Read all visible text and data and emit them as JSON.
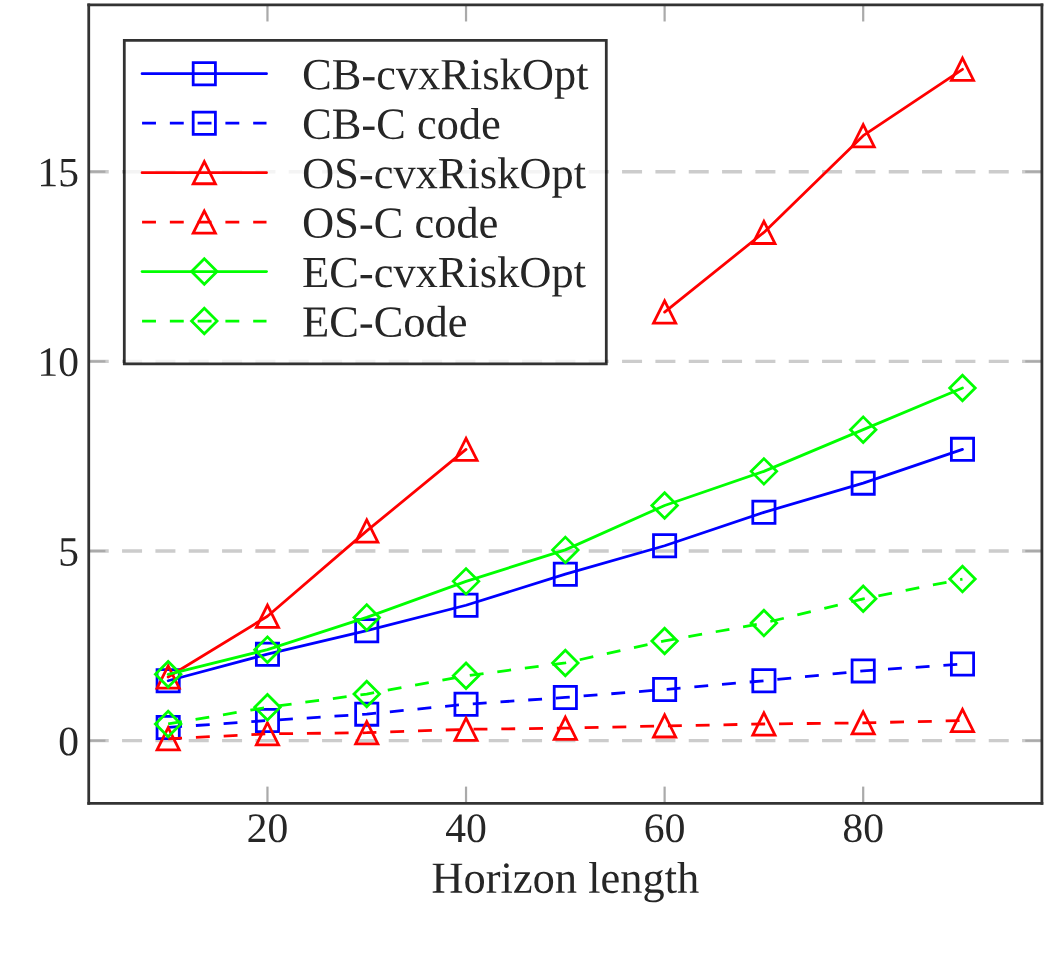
{
  "chart_data": {
    "type": "line",
    "xlabel": "Horizon length",
    "x": [
      10,
      20,
      30,
      40,
      50,
      60,
      70,
      80,
      90
    ],
    "xlim": [
      2,
      98
    ],
    "ylim": [
      -1.65,
      19.4
    ],
    "xticks": [
      20,
      40,
      60,
      80
    ],
    "yticks": [
      0,
      5,
      10,
      15
    ],
    "grid": "y",
    "legend": "top left",
    "series": [
      {
        "name": "CB-cvxRiskOpt",
        "color": "#0000ff",
        "marker": "square",
        "line_style": "solid",
        "values": [
          1.58,
          2.28,
          2.9,
          3.57,
          4.39,
          5.14,
          6.02,
          6.79,
          7.68
        ]
      },
      {
        "name": "CB-C code",
        "color": "#0000ff",
        "marker": "square",
        "line_style": "dashed",
        "values": [
          0.35,
          0.53,
          0.7,
          0.96,
          1.14,
          1.35,
          1.58,
          1.84,
          2.02
        ]
      },
      {
        "name": "OS-cvxRiskOpt",
        "color": "#ff0000",
        "marker": "triangle",
        "line_style": "solid",
        "values": [
          1.68,
          3.28,
          5.53,
          7.68,
          null,
          11.3,
          13.4,
          15.95,
          17.7
        ]
      },
      {
        "name": "OS-C code",
        "color": "#ff0000",
        "marker": "triangle",
        "line_style": "dashed",
        "values": [
          0.05,
          0.18,
          0.21,
          0.3,
          0.33,
          0.39,
          0.44,
          0.47,
          0.53
        ]
      },
      {
        "name": "EC-cvxRiskOpt",
        "color": "#00ff00",
        "marker": "diamond",
        "line_style": "solid",
        "values": [
          1.75,
          2.4,
          3.25,
          4.2,
          5.03,
          6.2,
          7.1,
          8.2,
          9.3
        ]
      },
      {
        "name": "EC-Code",
        "color": "#00ff00",
        "marker": "diamond",
        "line_style": "dashed",
        "values": [
          0.44,
          0.88,
          1.23,
          1.71,
          2.05,
          2.63,
          3.1,
          3.74,
          4.26
        ]
      }
    ]
  }
}
